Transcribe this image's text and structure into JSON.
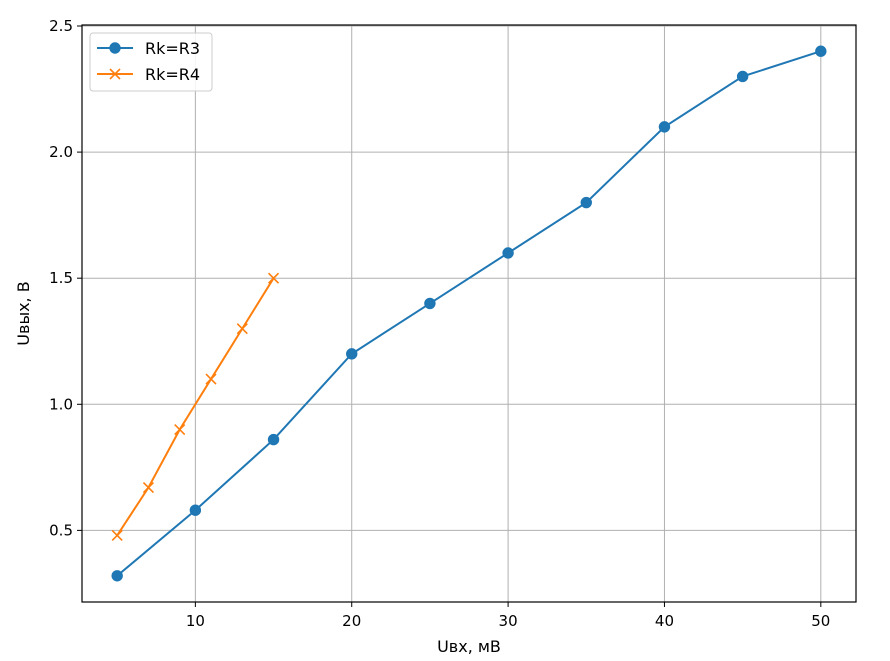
{
  "chart_data": {
    "type": "line",
    "xlabel": "Uвх, мВ",
    "ylabel": "Uвых, В",
    "xlim": [
      2.75,
      52.25
    ],
    "ylim": [
      0.216,
      2.504
    ],
    "xticks": [
      10,
      20,
      30,
      40,
      50
    ],
    "yticks": [
      0.5,
      1.0,
      1.5,
      2.0,
      2.5
    ],
    "xtick_labels": [
      "10",
      "20",
      "30",
      "40",
      "50"
    ],
    "ytick_labels": [
      "0.5",
      "1.0",
      "1.5",
      "2.0",
      "2.5"
    ],
    "grid": true,
    "legend_position": "top-left",
    "series": [
      {
        "name": "Rk=R3",
        "color": "#1f77b4",
        "marker": "circle",
        "x": [
          5,
          10,
          15,
          20,
          25,
          30,
          35,
          40,
          45,
          50
        ],
        "y": [
          0.32,
          0.58,
          0.86,
          1.2,
          1.4,
          1.6,
          1.8,
          2.1,
          2.3,
          2.4
        ]
      },
      {
        "name": "Rk=R4",
        "color": "#ff7f0e",
        "marker": "x",
        "x": [
          5,
          7,
          9,
          11,
          13,
          15
        ],
        "y": [
          0.48,
          0.67,
          0.9,
          1.1,
          1.3,
          1.5
        ]
      }
    ]
  }
}
